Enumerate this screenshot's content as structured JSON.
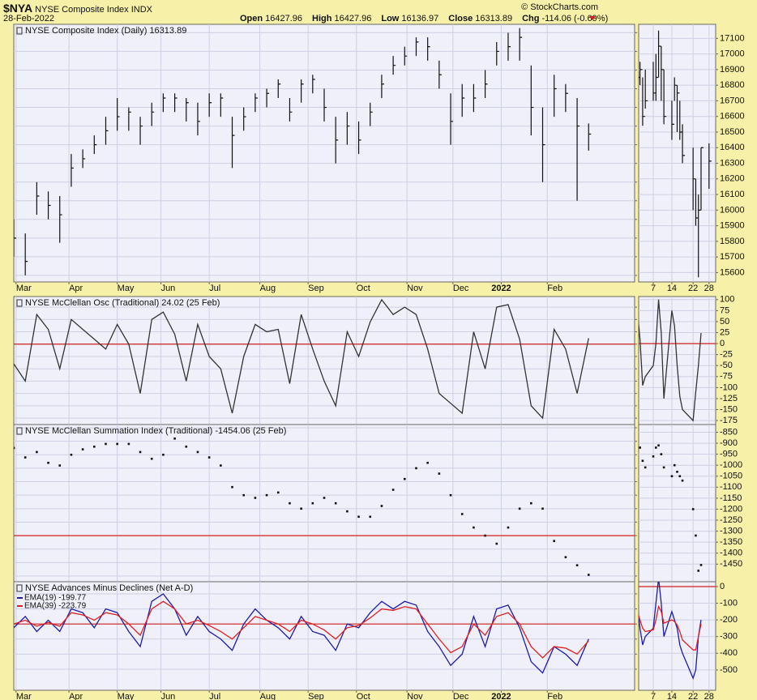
{
  "header": {
    "symbol": "$NYA",
    "name": "NYSE Composite Index INDX",
    "date": "28-Feb-2022",
    "source": "© StockCharts.com",
    "quote": [
      {
        "label": "Open",
        "value": 16427.96
      },
      {
        "label": "High",
        "value": 16427.96
      },
      {
        "label": "Low",
        "value": 16136.97
      },
      {
        "label": "Close",
        "value": 16313.89
      },
      {
        "label": "Chg",
        "value": "-114.06 (-0.69%)"
      }
    ]
  },
  "chart_data": [
    {
      "type": "hlc",
      "title": "NYSE Composite Index (Daily) 16313.89",
      "color": "#111111",
      "x": [
        0,
        5,
        10,
        15,
        20,
        25,
        30,
        35,
        40,
        45,
        50,
        55,
        60,
        65,
        70,
        75,
        80,
        85,
        90,
        95,
        100,
        105,
        110,
        115,
        120,
        125,
        130,
        135,
        140,
        145,
        150,
        155,
        160,
        165,
        170,
        175,
        180,
        185,
        190,
        195,
        200,
        205,
        210,
        215,
        220,
        225,
        230,
        235,
        240,
        245,
        250
      ],
      "high": [
        15400,
        15250,
        15800,
        15700,
        15650,
        16100,
        16150,
        16300,
        16500,
        16700,
        16600,
        16500,
        16650,
        16750,
        16750,
        16700,
        16650,
        16750,
        16750,
        16500,
        16600,
        16750,
        16800,
        16900,
        16700,
        16900,
        16950,
        16800,
        16500,
        16550,
        16450,
        16650,
        16950,
        17150,
        17250,
        17350,
        17350,
        17100,
        16750,
        16850,
        16850,
        17000,
        17300,
        17400,
        17450,
        17050,
        16600,
        16950,
        16850,
        16700,
        16427.96
      ],
      "low": [
        15000,
        14800,
        15450,
        15400,
        15150,
        15750,
        15950,
        16100,
        16200,
        16350,
        16350,
        16200,
        16400,
        16550,
        16550,
        16450,
        16300,
        16500,
        16500,
        15950,
        16350,
        16550,
        16600,
        16700,
        16450,
        16650,
        16750,
        16450,
        16000,
        16200,
        16100,
        16400,
        16700,
        16950,
        17050,
        17150,
        17100,
        16800,
        16200,
        16500,
        16550,
        16700,
        17050,
        17100,
        17100,
        16300,
        15800,
        16500,
        16550,
        15600,
        16136.97
      ],
      "close": [
        15200,
        14950,
        15650,
        15550,
        15450,
        15950,
        16050,
        16200,
        16350,
        16500,
        16550,
        16400,
        16550,
        16700,
        16700,
        16650,
        16450,
        16650,
        16700,
        16300,
        16500,
        16700,
        16750,
        16850,
        16550,
        16850,
        16900,
        16600,
        16250,
        16400,
        16250,
        16550,
        16850,
        17050,
        17150,
        17300,
        17250,
        16950,
        16450,
        16700,
        16700,
        16850,
        17200,
        17250,
        17350,
        16600,
        16200,
        16800,
        16750,
        16400,
        16313.89
      ],
      "xlim": [
        0,
        270
      ],
      "xticks": [
        {
          "value": 1,
          "label": "Mar"
        },
        {
          "value": 24,
          "label": "Apr"
        },
        {
          "value": 45,
          "label": "May"
        },
        {
          "value": 64,
          "label": "Jun"
        },
        {
          "value": 85,
          "label": "Jul"
        },
        {
          "value": 107,
          "label": "Aug"
        },
        {
          "value": 128,
          "label": "Sep"
        },
        {
          "value": 149,
          "label": "Oct"
        },
        {
          "value": 171,
          "label": "Nov"
        },
        {
          "value": 191,
          "label": "Dec"
        },
        {
          "value": 212,
          "label": "2022"
        },
        {
          "value": 232,
          "label": "Feb"
        }
      ],
      "ylim": [
        14730,
        17490
      ],
      "yticks": [
        14800,
        15000,
        15200,
        15400,
        15600,
        15800,
        16000,
        16200,
        16400,
        16600,
        16800,
        17000,
        17200,
        17400
      ],
      "grid": true
    },
    {
      "type": "hlc",
      "color": "#111111",
      "x": [
        1,
        2,
        3,
        4,
        7,
        8,
        9,
        10,
        11,
        14,
        15,
        16,
        17,
        18,
        22,
        23,
        24,
        25,
        28
      ],
      "high": [
        16950,
        16950,
        16850,
        16900,
        16950,
        17000,
        17150,
        17050,
        16900,
        16700,
        16850,
        16800,
        16700,
        16550,
        16400,
        16200,
        16100,
        16400,
        16427.96
      ],
      "low": [
        16750,
        16800,
        16540,
        16650,
        16700,
        16700,
        16850,
        16700,
        16550,
        16450,
        16700,
        16500,
        16450,
        16300,
        16000,
        15900,
        15570,
        16000,
        16136.97
      ],
      "close": [
        16850,
        16900,
        16600,
        16700,
        16750,
        16850,
        17050,
        16900,
        16600,
        16550,
        16800,
        16750,
        16500,
        16350,
        16200,
        15950,
        16000,
        16400,
        16313.89
      ],
      "xlim": [
        1.5,
        30.5
      ],
      "xticks": [
        7,
        14,
        22,
        28
      ],
      "ylim": [
        15540,
        17190
      ],
      "yticks": [
        15600,
        15700,
        15800,
        15900,
        16000,
        16100,
        16200,
        16300,
        16400,
        16500,
        16600,
        16700,
        16800,
        16900,
        17000,
        17100
      ],
      "grid": true
    },
    {
      "type": "line",
      "title": "NYSE McClellan Osc (Traditional) 24.02 (25 Feb)",
      "x": [
        0,
        5,
        10,
        15,
        20,
        25,
        30,
        35,
        40,
        45,
        50,
        55,
        60,
        65,
        70,
        75,
        80,
        85,
        90,
        95,
        100,
        105,
        110,
        115,
        120,
        125,
        130,
        135,
        140,
        145,
        150,
        155,
        160,
        165,
        170,
        175,
        180,
        185,
        190,
        195,
        200,
        205,
        210,
        215,
        220,
        225,
        230,
        235,
        240,
        245,
        250
      ],
      "series": [
        {
          "color": "#333333",
          "values": [
            -80,
            -150,
            120,
            60,
            -100,
            100,
            60,
            20,
            -20,
            80,
            0,
            -200,
            100,
            130,
            40,
            -150,
            80,
            -50,
            -100,
            -280,
            -50,
            80,
            50,
            60,
            -160,
            120,
            -20,
            -150,
            -250,
            50,
            -50,
            90,
            180,
            120,
            150,
            120,
            -20,
            -200,
            -240,
            -280,
            50,
            -100,
            150,
            160,
            20,
            -250,
            -300,
            60,
            -20,
            -200,
            24.02
          ]
        }
      ],
      "xlim": [
        0,
        270
      ],
      "ylim": [
        -326,
        193
      ],
      "yticks": [
        -300,
        -250,
        -200,
        -150,
        -100,
        -50,
        0,
        50,
        100,
        150
      ],
      "grid": true,
      "hline": 0,
      "hline_color": "#d02020"
    },
    {
      "type": "line",
      "x": [
        1,
        2,
        3,
        4,
        7,
        8,
        9,
        10,
        11,
        14,
        15,
        16,
        17,
        18,
        22,
        23,
        24,
        25
      ],
      "series": [
        {
          "color": "#333333",
          "values": [
            75,
            10,
            -95,
            -75,
            -50,
            0,
            100,
            25,
            -125,
            75,
            40,
            -50,
            -120,
            -150,
            -175,
            -110,
            -50,
            24.02
          ]
        }
      ],
      "xlim": [
        1.5,
        30.5
      ],
      "ylim": [
        -184,
        107
      ],
      "yticks": [
        -175,
        -150,
        -125,
        -100,
        -75,
        -50,
        -25,
        0,
        25,
        50,
        75,
        100
      ],
      "grid": true,
      "hline": 0,
      "hline_color": "#d02020"
    },
    {
      "type": "scatter",
      "title": "NYSE McClellan Summation Index (Traditional) -1454.06 (25 Feb)",
      "color": "#111111",
      "x": [
        0,
        5,
        10,
        15,
        20,
        25,
        30,
        35,
        40,
        45,
        50,
        55,
        60,
        65,
        70,
        75,
        80,
        85,
        90,
        95,
        100,
        105,
        110,
        115,
        120,
        125,
        130,
        135,
        140,
        145,
        150,
        155,
        160,
        165,
        170,
        175,
        180,
        185,
        190,
        195,
        200,
        205,
        210,
        215,
        220,
        225,
        230,
        235,
        240,
        245,
        250
      ],
      "values": [
        3250,
        2900,
        3100,
        2700,
        2600,
        3000,
        3200,
        3300,
        3400,
        3400,
        3400,
        3100,
        2850,
        3000,
        3600,
        3300,
        3100,
        2900,
        2600,
        1800,
        1500,
        1400,
        1500,
        1600,
        1200,
        1000,
        1200,
        1400,
        1200,
        900,
        700,
        700,
        1100,
        1700,
        2100,
        2500,
        2700,
        2300,
        1500,
        800,
        300,
        0,
        -300,
        300,
        1000,
        1200,
        1000,
        -200,
        -800,
        -1100,
        -1454.06
      ],
      "xlim": [
        0,
        270
      ],
      "ylim": [
        -1710,
        4120
      ],
      "yticks": [
        -1500,
        -1000,
        -500,
        0,
        500,
        1000,
        1500,
        2000,
        2500,
        3000,
        3500,
        4000
      ],
      "grid": true,
      "hline": 0,
      "hline_color": "#d02020"
    },
    {
      "type": "scatter",
      "color": "#111111",
      "x": [
        1,
        2,
        3,
        4,
        7,
        8,
        9,
        10,
        11,
        14,
        15,
        16,
        17,
        18,
        22,
        23,
        24,
        25
      ],
      "values": [
        -880,
        -920,
        -980,
        -1010,
        -960,
        -920,
        -910,
        -950,
        -1010,
        -1050,
        -1000,
        -1030,
        -1050,
        -1070,
        -1200,
        -1320,
        -1480,
        -1454.06
      ],
      "xlim": [
        1.5,
        30.5
      ],
      "ylim": [
        -1530,
        -815
      ],
      "yticks": [
        -1450,
        -1400,
        -1350,
        -1300,
        -1250,
        -1200,
        -1150,
        -1100,
        -1050,
        -1000,
        -950,
        -900,
        -850
      ],
      "grid": true
    },
    {
      "type": "line",
      "title": "NYSE Advances Minus Declines (Net A-D)",
      "x": [
        0,
        5,
        10,
        15,
        20,
        25,
        30,
        35,
        40,
        45,
        50,
        55,
        60,
        65,
        70,
        75,
        80,
        85,
        90,
        95,
        100,
        105,
        110,
        115,
        120,
        125,
        130,
        135,
        140,
        145,
        150,
        155,
        160,
        165,
        170,
        175,
        180,
        185,
        190,
        195,
        200,
        205,
        210,
        215,
        220,
        225,
        230,
        235,
        240,
        245,
        250
      ],
      "series": [
        {
          "name": "EMA(19) -199.77",
          "color": "#1c1ca8",
          "values": [
            -50,
            100,
            -100,
            50,
            -100,
            200,
            150,
            -50,
            200,
            150,
            -100,
            -300,
            300,
            400,
            200,
            -150,
            100,
            -100,
            -200,
            -350,
            0,
            200,
            50,
            -50,
            -200,
            100,
            -100,
            -150,
            -350,
            0,
            -50,
            150,
            300,
            200,
            300,
            250,
            -100,
            -300,
            -550,
            -400,
            100,
            -300,
            200,
            250,
            -50,
            -500,
            -650,
            -300,
            -400,
            -550,
            -199.77
          ]
        },
        {
          "name": "EMA(39) -223.79",
          "color": "#e02020",
          "values": [
            0,
            50,
            -30,
            20,
            -30,
            150,
            120,
            50,
            150,
            120,
            0,
            -150,
            200,
            300,
            200,
            0,
            50,
            -20,
            -100,
            -200,
            -50,
            100,
            50,
            0,
            -100,
            50,
            0,
            -80,
            -200,
            -50,
            -20,
            80,
            200,
            180,
            230,
            200,
            0,
            -200,
            -380,
            -300,
            0,
            -150,
            100,
            150,
            0,
            -300,
            -450,
            -300,
            -320,
            -400,
            -223.79
          ]
        }
      ],
      "xlim": [
        0,
        270
      ],
      "xticks": [
        {
          "value": 1,
          "label": "Mar"
        },
        {
          "value": 24,
          "label": "Apr"
        },
        {
          "value": 45,
          "label": "May"
        },
        {
          "value": 64,
          "label": "Jun"
        },
        {
          "value": 85,
          "label": "Jul"
        },
        {
          "value": 107,
          "label": "Aug"
        },
        {
          "value": 128,
          "label": "Sep"
        },
        {
          "value": 149,
          "label": "Oct"
        },
        {
          "value": 171,
          "label": "Nov"
        },
        {
          "value": 191,
          "label": "Dec"
        },
        {
          "value": 212,
          "label": "2022"
        },
        {
          "value": 232,
          "label": "Feb"
        }
      ],
      "ylim": [
        -880,
        561
      ],
      "yticks": [
        -600,
        -400,
        -200,
        0,
        200,
        400
      ],
      "grid": true,
      "hline": 0,
      "hline_color": "#d02020",
      "legend": "upper left"
    },
    {
      "type": "line",
      "x": [
        1,
        2,
        3,
        4,
        7,
        8,
        9,
        10,
        11,
        14,
        15,
        16,
        17,
        18,
        22,
        23,
        24,
        25
      ],
      "series": [
        {
          "color": "#1c1ca8",
          "values": [
            -100,
            -250,
            -350,
            -300,
            -250,
            -100,
            50,
            -100,
            -300,
            -150,
            -200,
            -250,
            -350,
            -400,
            -550,
            -500,
            -300,
            -199.77
          ]
        },
        {
          "color": "#e02020",
          "values": [
            -150,
            -200,
            -250,
            -270,
            -260,
            -200,
            -120,
            -150,
            -220,
            -200,
            -210,
            -230,
            -270,
            -320,
            -380,
            -380,
            -300,
            -223.79
          ]
        }
      ],
      "xlim": [
        1.5,
        30.5
      ],
      "xticks": [
        7,
        14,
        22,
        28
      ],
      "ylim": [
        -622,
        29
      ],
      "yticks": [
        -500,
        -400,
        -300,
        -200,
        -100,
        0
      ],
      "grid": true,
      "hline": 0,
      "hline_color": "#d02020"
    }
  ]
}
